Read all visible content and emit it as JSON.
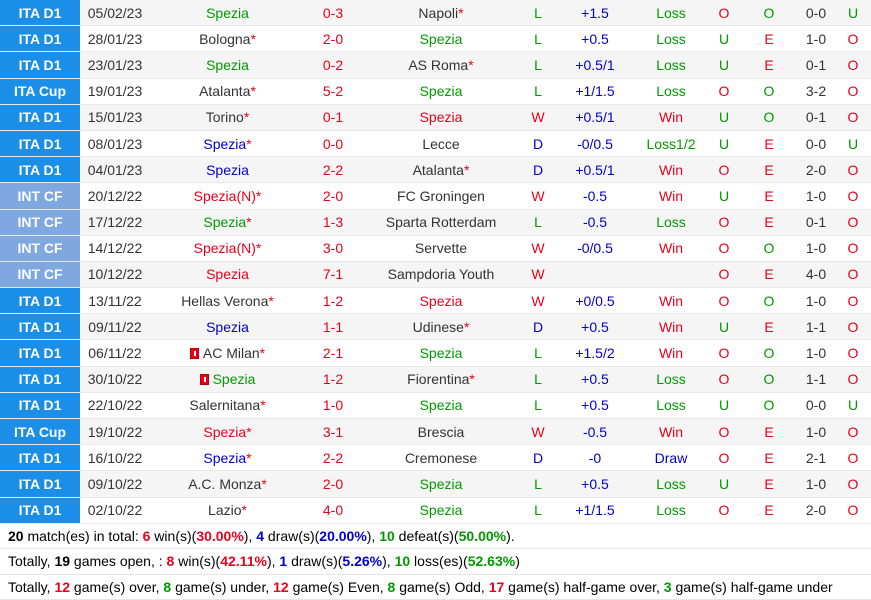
{
  "matches": [
    {
      "league": "ITA D1",
      "lg": "d1",
      "date": "05/02/23",
      "home": "Spezia",
      "home_star": false,
      "home_color": "green",
      "score": "0-3",
      "away": "Napoli",
      "away_star": true,
      "away_color": "dark",
      "wl": "L",
      "hc": "+1.5",
      "hcres": "Loss",
      "ou": "O",
      "ou2": "O",
      "ht": "0-0",
      "last": "U"
    },
    {
      "league": "ITA D1",
      "lg": "d1",
      "date": "28/01/23",
      "home": "Bologna",
      "home_star": true,
      "home_color": "dark",
      "score": "2-0",
      "away": "Spezia",
      "away_star": false,
      "away_color": "green",
      "wl": "L",
      "hc": "+0.5",
      "hcres": "Loss",
      "ou": "U",
      "ou2": "E",
      "ht": "1-0",
      "last": "O"
    },
    {
      "league": "ITA D1",
      "lg": "d1",
      "date": "23/01/23",
      "home": "Spezia",
      "home_star": false,
      "home_color": "green",
      "score": "0-2",
      "away": "AS Roma",
      "away_star": true,
      "away_color": "dark",
      "wl": "L",
      "hc": "+0.5/1",
      "hcres": "Loss",
      "ou": "U",
      "ou2": "E",
      "ht": "0-1",
      "last": "O"
    },
    {
      "league": "ITA Cup",
      "lg": "cup",
      "date": "19/01/23",
      "home": "Atalanta",
      "home_star": true,
      "home_color": "dark",
      "score": "5-2",
      "away": "Spezia",
      "away_star": false,
      "away_color": "green",
      "wl": "L",
      "hc": "+1/1.5",
      "hcres": "Loss",
      "ou": "O",
      "ou2": "O",
      "ht": "3-2",
      "last": "O"
    },
    {
      "league": "ITA D1",
      "lg": "d1",
      "date": "15/01/23",
      "home": "Torino",
      "home_star": true,
      "home_color": "dark",
      "score": "0-1",
      "away": "Spezia",
      "away_star": false,
      "away_color": "red",
      "wl": "W",
      "hc": "+0.5/1",
      "hcres": "Win",
      "ou": "U",
      "ou2": "O",
      "ht": "0-1",
      "last": "O"
    },
    {
      "league": "ITA D1",
      "lg": "d1",
      "date": "08/01/23",
      "home": "Spezia",
      "home_star": true,
      "home_color": "blue",
      "score": "0-0",
      "away": "Lecce",
      "away_star": false,
      "away_color": "dark",
      "wl": "D",
      "hc": "-0/0.5",
      "hcres": "Loss1/2",
      "ou": "U",
      "ou2": "E",
      "ht": "0-0",
      "last": "U"
    },
    {
      "league": "ITA D1",
      "lg": "d1",
      "date": "04/01/23",
      "home": "Spezia",
      "home_star": false,
      "home_color": "blue",
      "score": "2-2",
      "away": "Atalanta",
      "away_star": true,
      "away_color": "dark",
      "wl": "D",
      "hc": "+0.5/1",
      "hcres": "Win",
      "ou": "O",
      "ou2": "E",
      "ht": "2-0",
      "last": "O"
    },
    {
      "league": "INT CF",
      "lg": "intcf",
      "date": "20/12/22",
      "home": "Spezia(N)",
      "home_star": true,
      "home_color": "red",
      "score": "2-0",
      "away": "FC Groningen",
      "away_star": false,
      "away_color": "dark",
      "wl": "W",
      "hc": "-0.5",
      "hcres": "Win",
      "ou": "U",
      "ou2": "E",
      "ht": "1-0",
      "last": "O"
    },
    {
      "league": "INT CF",
      "lg": "intcf",
      "date": "17/12/22",
      "home": "Spezia",
      "home_star": true,
      "home_color": "green",
      "score": "1-3",
      "away": "Sparta Rotterdam",
      "away_star": false,
      "away_color": "dark",
      "wl": "L",
      "hc": "-0.5",
      "hcres": "Loss",
      "ou": "O",
      "ou2": "E",
      "ht": "0-1",
      "last": "O"
    },
    {
      "league": "INT CF",
      "lg": "intcf",
      "date": "14/12/22",
      "home": "Spezia(N)",
      "home_star": true,
      "home_color": "red",
      "score": "3-0",
      "away": "Servette",
      "away_star": false,
      "away_color": "dark",
      "wl": "W",
      "hc": "-0/0.5",
      "hcres": "Win",
      "ou": "O",
      "ou2": "O",
      "ht": "1-0",
      "last": "O"
    },
    {
      "league": "INT CF",
      "lg": "intcf",
      "date": "10/12/22",
      "home": "Spezia",
      "home_star": false,
      "home_color": "red",
      "score": "7-1",
      "away": "Sampdoria Youth",
      "away_star": false,
      "away_color": "dark",
      "wl": "W",
      "hc": "",
      "hcres": "",
      "ou": "O",
      "ou2": "E",
      "ht": "4-0",
      "last": "O"
    },
    {
      "league": "ITA D1",
      "lg": "d1",
      "date": "13/11/22",
      "home": "Hellas Verona",
      "home_star": true,
      "home_color": "dark",
      "score": "1-2",
      "away": "Spezia",
      "away_star": false,
      "away_color": "red",
      "wl": "W",
      "hc": "+0/0.5",
      "hcres": "Win",
      "ou": "O",
      "ou2": "O",
      "ht": "1-0",
      "last": "O"
    },
    {
      "league": "ITA D1",
      "lg": "d1",
      "date": "09/11/22",
      "home": "Spezia",
      "home_star": false,
      "home_color": "blue",
      "score": "1-1",
      "away": "Udinese",
      "away_star": true,
      "away_color": "dark",
      "wl": "D",
      "hc": "+0.5",
      "hcres": "Win",
      "ou": "U",
      "ou2": "E",
      "ht": "1-1",
      "last": "O"
    },
    {
      "league": "ITA D1",
      "lg": "d1",
      "date": "06/11/22",
      "home": "AC Milan",
      "home_star": true,
      "home_color": "dark",
      "home_flag": true,
      "score": "2-1",
      "away": "Spezia",
      "away_star": false,
      "away_color": "green",
      "wl": "L",
      "hc": "+1.5/2",
      "hcres": "Win",
      "ou": "O",
      "ou2": "O",
      "ht": "1-0",
      "last": "O"
    },
    {
      "league": "ITA D1",
      "lg": "d1",
      "date": "30/10/22",
      "home": "Spezia",
      "home_star": false,
      "home_color": "green",
      "home_flag": true,
      "score": "1-2",
      "away": "Fiorentina",
      "away_star": true,
      "away_color": "dark",
      "wl": "L",
      "hc": "+0.5",
      "hcres": "Loss",
      "ou": "O",
      "ou2": "O",
      "ht": "1-1",
      "last": "O"
    },
    {
      "league": "ITA D1",
      "lg": "d1",
      "date": "22/10/22",
      "home": "Salernitana",
      "home_star": true,
      "home_color": "dark",
      "score": "1-0",
      "away": "Spezia",
      "away_star": false,
      "away_color": "green",
      "wl": "L",
      "hc": "+0.5",
      "hcres": "Loss",
      "ou": "U",
      "ou2": "O",
      "ht": "0-0",
      "last": "U"
    },
    {
      "league": "ITA Cup",
      "lg": "cup",
      "date": "19/10/22",
      "home": "Spezia",
      "home_star": true,
      "home_color": "red",
      "score": "3-1",
      "away": "Brescia",
      "away_star": false,
      "away_color": "dark",
      "wl": "W",
      "hc": "-0.5",
      "hcres": "Win",
      "ou": "O",
      "ou2": "E",
      "ht": "1-0",
      "last": "O"
    },
    {
      "league": "ITA D1",
      "lg": "d1",
      "date": "16/10/22",
      "home": "Spezia",
      "home_star": true,
      "home_color": "blue",
      "score": "2-2",
      "away": "Cremonese",
      "away_star": false,
      "away_color": "dark",
      "wl": "D",
      "hc": "-0",
      "hcres": "Draw",
      "ou": "O",
      "ou2": "E",
      "ht": "2-1",
      "last": "O"
    },
    {
      "league": "ITA D1",
      "lg": "d1",
      "date": "09/10/22",
      "home": "A.C. Monza",
      "home_star": true,
      "home_color": "dark",
      "score": "2-0",
      "away": "Spezia",
      "away_star": false,
      "away_color": "green",
      "wl": "L",
      "hc": "+0.5",
      "hcres": "Loss",
      "ou": "U",
      "ou2": "E",
      "ht": "1-0",
      "last": "O"
    },
    {
      "league": "ITA D1",
      "lg": "d1",
      "date": "02/10/22",
      "home": "Lazio",
      "home_star": true,
      "home_color": "dark",
      "score": "4-0",
      "away": "Spezia",
      "away_star": false,
      "away_color": "green",
      "wl": "L",
      "hc": "+1/1.5",
      "hcres": "Loss",
      "ou": "O",
      "ou2": "E",
      "ht": "2-0",
      "last": "O"
    }
  ],
  "summary": {
    "line1": {
      "total": "20",
      "t1": " match(es) in total: ",
      "wins": "6",
      "t2": " win(s)(",
      "win_pct": "30.00%",
      "t3": "), ",
      "draws": "4",
      "t4": " draw(s)(",
      "draw_pct": "20.00%",
      "t5": "), ",
      "defeats": "10",
      "t6": " defeat(s)(",
      "defeat_pct": "50.00%",
      "t7": ")."
    },
    "line2": {
      "t0": "Totally, ",
      "open": "19",
      "t1": " games open, : ",
      "wins": "8",
      "t2": " win(s)(",
      "win_pct": "42.11%",
      "t3": "), ",
      "draws": "1",
      "t4": " draw(s)(",
      "draw_pct": "5.26%",
      "t5": "), ",
      "losses": "10",
      "t6": " loss(es)(",
      "loss_pct": "52.63%",
      "t7": ")"
    },
    "line3": {
      "t0": "Totally, ",
      "over": "12",
      "t1": " game(s) over, ",
      "under": "8",
      "t2": " game(s) under, ",
      "even": "12",
      "t3": " game(s) Even, ",
      "odd": "8",
      "t4": " game(s) Odd, ",
      "hg_over": "17",
      "t5": " game(s) half-game over, ",
      "hg_under": "3",
      "t6": " game(s) half-game under"
    }
  },
  "colors": {
    "league_bg": "#1b8ee8",
    "intcf_bg": "#7fa7e0",
    "red": "#e8001c",
    "green": "#009900",
    "blue": "#0000cc"
  }
}
